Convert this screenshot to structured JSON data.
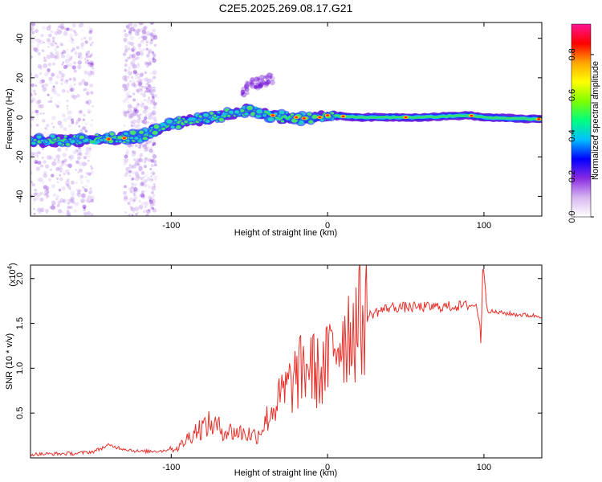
{
  "figure": {
    "title": "C2E5.2025.269.08.17.G21"
  },
  "chart_data": [
    {
      "type": "heatmap",
      "panel": "top",
      "title": "C2E5.2025.269.08.17.G21",
      "xlabel": "Height of straight line (km)",
      "ylabel": "Frequency (Hz)",
      "xlim": [
        -190,
        137
      ],
      "ylim": [
        -50,
        48
      ],
      "xticks": [
        -100,
        0,
        100
      ],
      "xticklabels": [
        "-100",
        "0",
        "100"
      ],
      "yticks": [
        -40,
        -20,
        0,
        20,
        40
      ],
      "yticklabels": [
        "-40",
        "-20",
        "0",
        "20",
        "40"
      ],
      "ridge": {
        "x": [
          -190,
          -160,
          -140,
          -120,
          -110,
          -100,
          -80,
          -60,
          -50,
          -40,
          -30,
          -20,
          -10,
          0,
          20,
          60,
          90,
          100,
          137
        ],
        "frequency": [
          -12,
          -12,
          -11,
          -10,
          -6,
          -3,
          -1,
          2,
          4,
          2,
          0,
          0,
          -1,
          1,
          0,
          0,
          1,
          0,
          -1
        ]
      },
      "faint_branch": {
        "x": [
          -55,
          -45,
          -35
        ],
        "frequency": [
          14,
          17,
          20
        ]
      },
      "colorbar": {
        "label": "Normalized spectral amplitude",
        "range": [
          0.0,
          0.95
        ],
        "ticks": [
          0.0,
          0.2,
          0.4,
          0.6,
          0.8
        ],
        "ticklabels": [
          "0.0",
          "0.2",
          "0.4",
          "0.6",
          "0.8"
        ],
        "colors": [
          "#ffffff",
          "#d8b8f0",
          "#8a2be2",
          "#0000ff",
          "#00bfff",
          "#00ff7f",
          "#7fff00",
          "#ffff00",
          "#ffa500",
          "#ff0000",
          "#ff1493"
        ]
      }
    },
    {
      "type": "line",
      "panel": "bottom",
      "xlabel": "Height of straight line (km)",
      "ylabel": "SNR (10 * v/v)",
      "yexponent_label": "(x10",
      "yexponent_power": "4",
      "yexponent_close": ")",
      "xlim": [
        -190,
        137
      ],
      "ylim": [
        0,
        2.15
      ],
      "xticks": [
        -100,
        0,
        100
      ],
      "xticklabels": [
        "-100",
        "0",
        "100"
      ],
      "yticks": [
        0.5,
        1.0,
        1.5,
        2.0
      ],
      "yticklabels": [
        "0.5",
        "1.0",
        "1.5",
        "2.0"
      ],
      "color": "#e8302a",
      "series": [
        {
          "name": "SNR",
          "x": [
            -190,
            -160,
            -150,
            -140,
            -130,
            -120,
            -105,
            -95,
            -85,
            -75,
            -65,
            -55,
            -45,
            -35,
            -28,
            -20,
            -12,
            -5,
            0,
            5,
            10,
            15,
            20,
            30,
            40,
            60,
            80,
            90,
            95,
            98,
            100,
            102,
            105,
            120,
            137
          ],
          "y": [
            0.02,
            0.03,
            0.05,
            0.12,
            0.08,
            0.05,
            0.06,
            0.12,
            0.3,
            0.38,
            0.3,
            0.28,
            0.25,
            0.55,
            0.72,
            0.9,
            1.05,
            0.92,
            1.05,
            1.3,
            1.38,
            1.45,
            1.52,
            1.62,
            1.68,
            1.68,
            1.69,
            1.7,
            1.7,
            1.45,
            2.1,
            1.65,
            1.63,
            1.6,
            1.58
          ]
        }
      ]
    }
  ]
}
